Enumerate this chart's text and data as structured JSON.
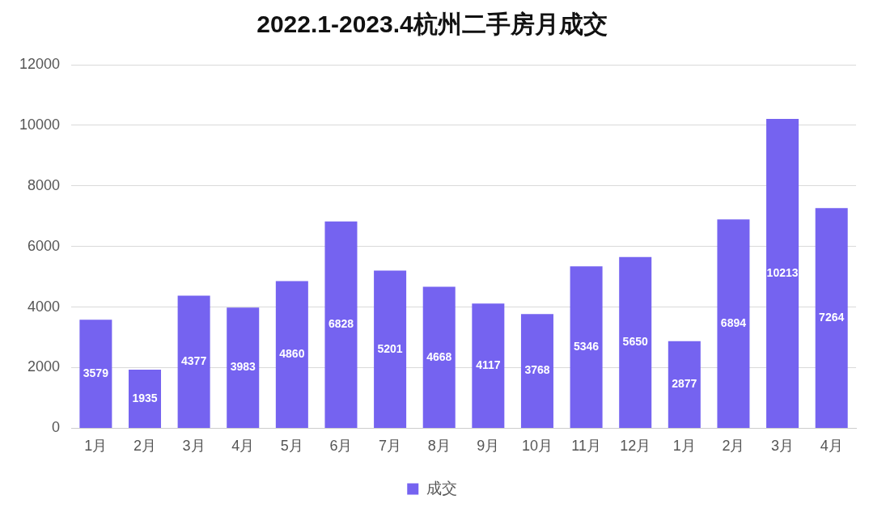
{
  "chart_data": {
    "type": "bar",
    "title": "2022.1-2023.4杭州二手房月成交",
    "categories": [
      "1月",
      "2月",
      "3月",
      "4月",
      "5月",
      "6月",
      "7月",
      "8月",
      "9月",
      "10月",
      "11月",
      "12月",
      "1月",
      "2月",
      "3月",
      "4月"
    ],
    "series": [
      {
        "name": "成交",
        "color": "#7563f0",
        "values": [
          3579,
          1935,
          4377,
          3983,
          4860,
          6828,
          5201,
          4668,
          4117,
          3768,
          5346,
          5650,
          2877,
          6894,
          10213,
          7264
        ]
      }
    ],
    "ylim": [
      0,
      12000
    ],
    "yticks": [
      0,
      2000,
      4000,
      6000,
      8000,
      10000,
      12000
    ],
    "grid": "y",
    "legend": "bottom",
    "data_labels": true
  }
}
